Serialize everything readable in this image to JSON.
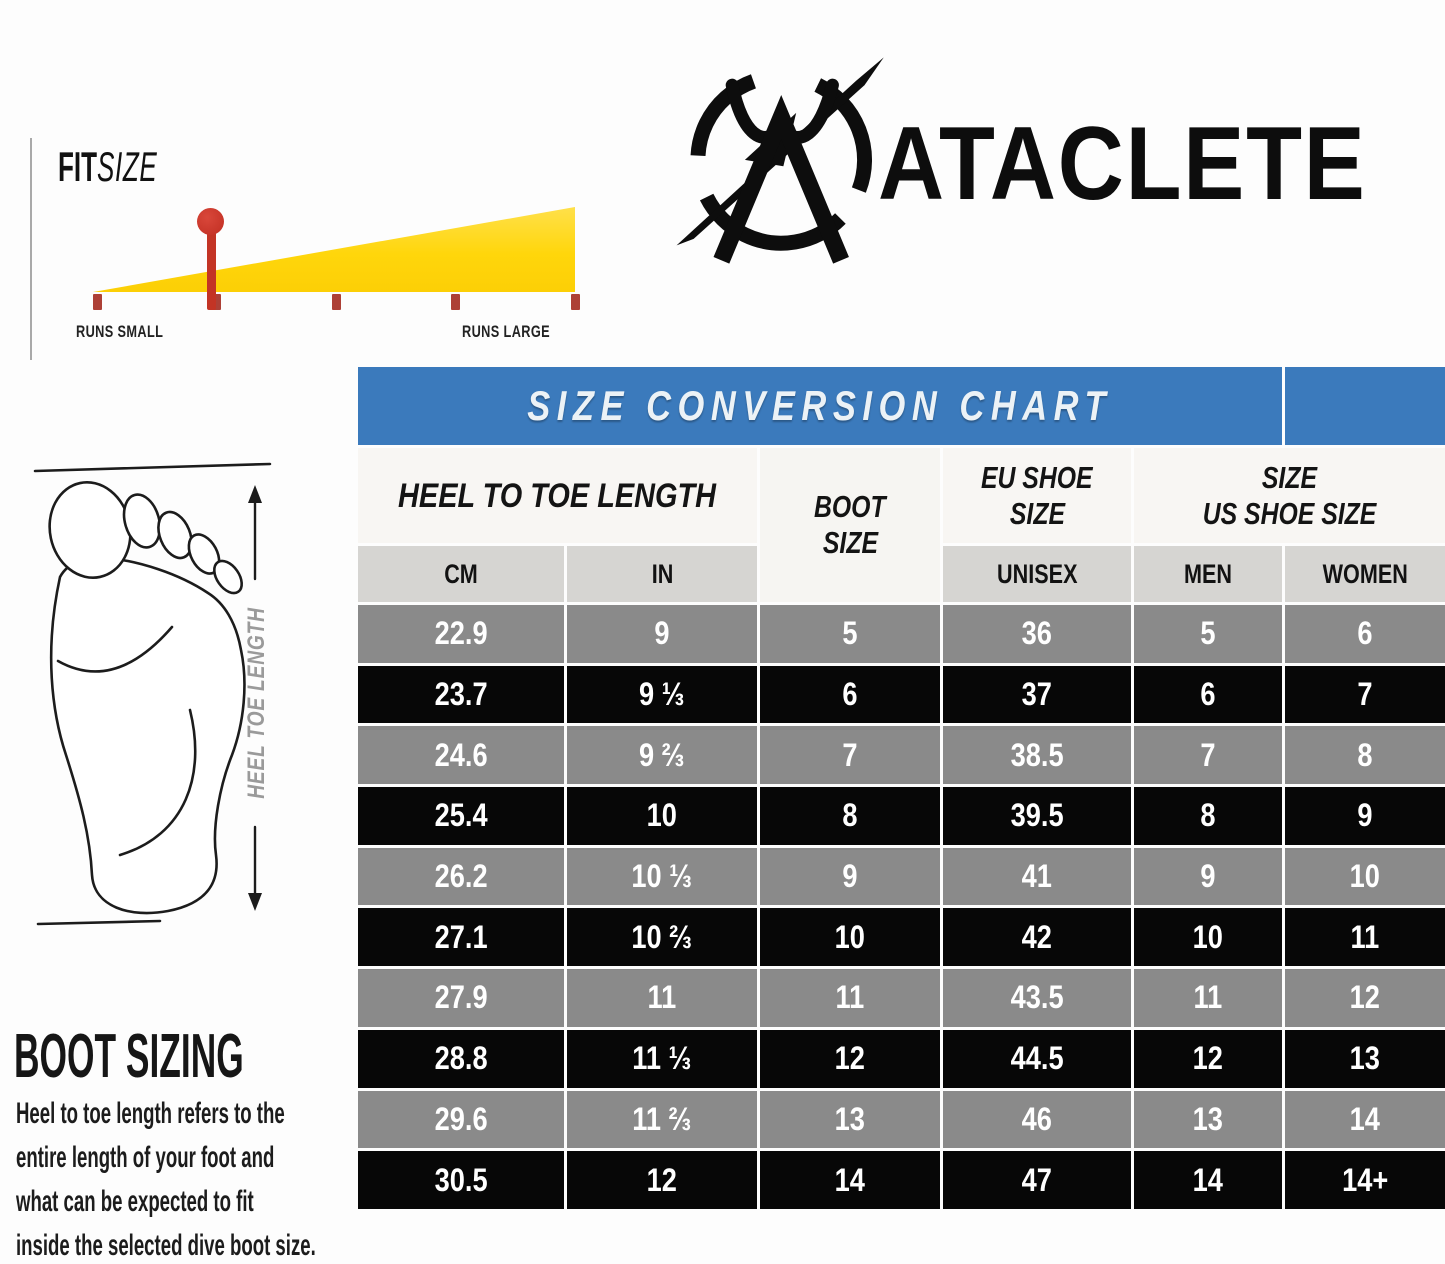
{
  "brand": {
    "wordmark": "ATACLETE",
    "logo_icon": "ataclete-arrow-bird-logo"
  },
  "fit_widget": {
    "heading_bold": "FIT",
    "heading_italic": "SIZE",
    "label_left": "RUNS SMALL",
    "label_right": "RUNS LARGE",
    "tick_count": 5,
    "marker_tick_index": 2,
    "triangle_color": "#ffd60b",
    "tick_color": "#ad4036",
    "marker_color": "#c33425"
  },
  "foot_diagram": {
    "measure_label": "HEEL TOE LENGTH"
  },
  "boot_sizing": {
    "heading": "BOOT SIZING",
    "description_lines": [
      "Heel to toe length refers to the",
      "entire length of your foot and",
      "what can be expected to fit",
      "inside the selected dive boot size."
    ]
  },
  "chart_data": {
    "type": "table",
    "title": "SIZE CONVERSION CHART",
    "title_bar_color": "#3b7abc",
    "column_groups": [
      {
        "label": "HEEL TO TOE LENGTH",
        "lines": [
          "HEEL TO TOE LENGTH"
        ],
        "spans": [
          "CM",
          "IN"
        ]
      },
      {
        "label": "BOOT SIZE",
        "lines": [
          "BOOT",
          "SIZE"
        ],
        "spans": [
          "BOOT SIZE"
        ]
      },
      {
        "label": "EU SHOE SIZE",
        "lines": [
          "EU SHOE",
          "SIZE"
        ],
        "spans": [
          "UNISEX"
        ]
      },
      {
        "label": "SIZE US SHOE SIZE",
        "lines": [
          "SIZE",
          "US SHOE SIZE"
        ],
        "spans": [
          "MEN",
          "WOMEN"
        ]
      }
    ],
    "subheaders": [
      "CM",
      "IN",
      "",
      "UNISEX",
      "MEN",
      "WOMEN"
    ],
    "rows": [
      [
        "22.9",
        "9",
        "5",
        "36",
        "5",
        "6"
      ],
      [
        "23.7",
        "9 ⅓",
        "6",
        "37",
        "6",
        "7"
      ],
      [
        "24.6",
        "9 ⅔",
        "7",
        "38.5",
        "7",
        "8"
      ],
      [
        "25.4",
        "10",
        "8",
        "39.5",
        "8",
        "9"
      ],
      [
        "26.2",
        "10 ⅓",
        "9",
        "41",
        "9",
        "10"
      ],
      [
        "27.1",
        "10 ⅔",
        "10",
        "42",
        "10",
        "11"
      ],
      [
        "27.9",
        "11",
        "11",
        "43.5",
        "11",
        "12"
      ],
      [
        "28.8",
        "11 ⅓",
        "12",
        "44.5",
        "12",
        "13"
      ],
      [
        "29.6",
        "11 ⅔",
        "13",
        "46",
        "13",
        "14"
      ],
      [
        "30.5",
        "12",
        "14",
        "47",
        "14",
        "14+"
      ]
    ],
    "row_colors_alternating": [
      "#8a8a8a",
      "#070707"
    ]
  }
}
